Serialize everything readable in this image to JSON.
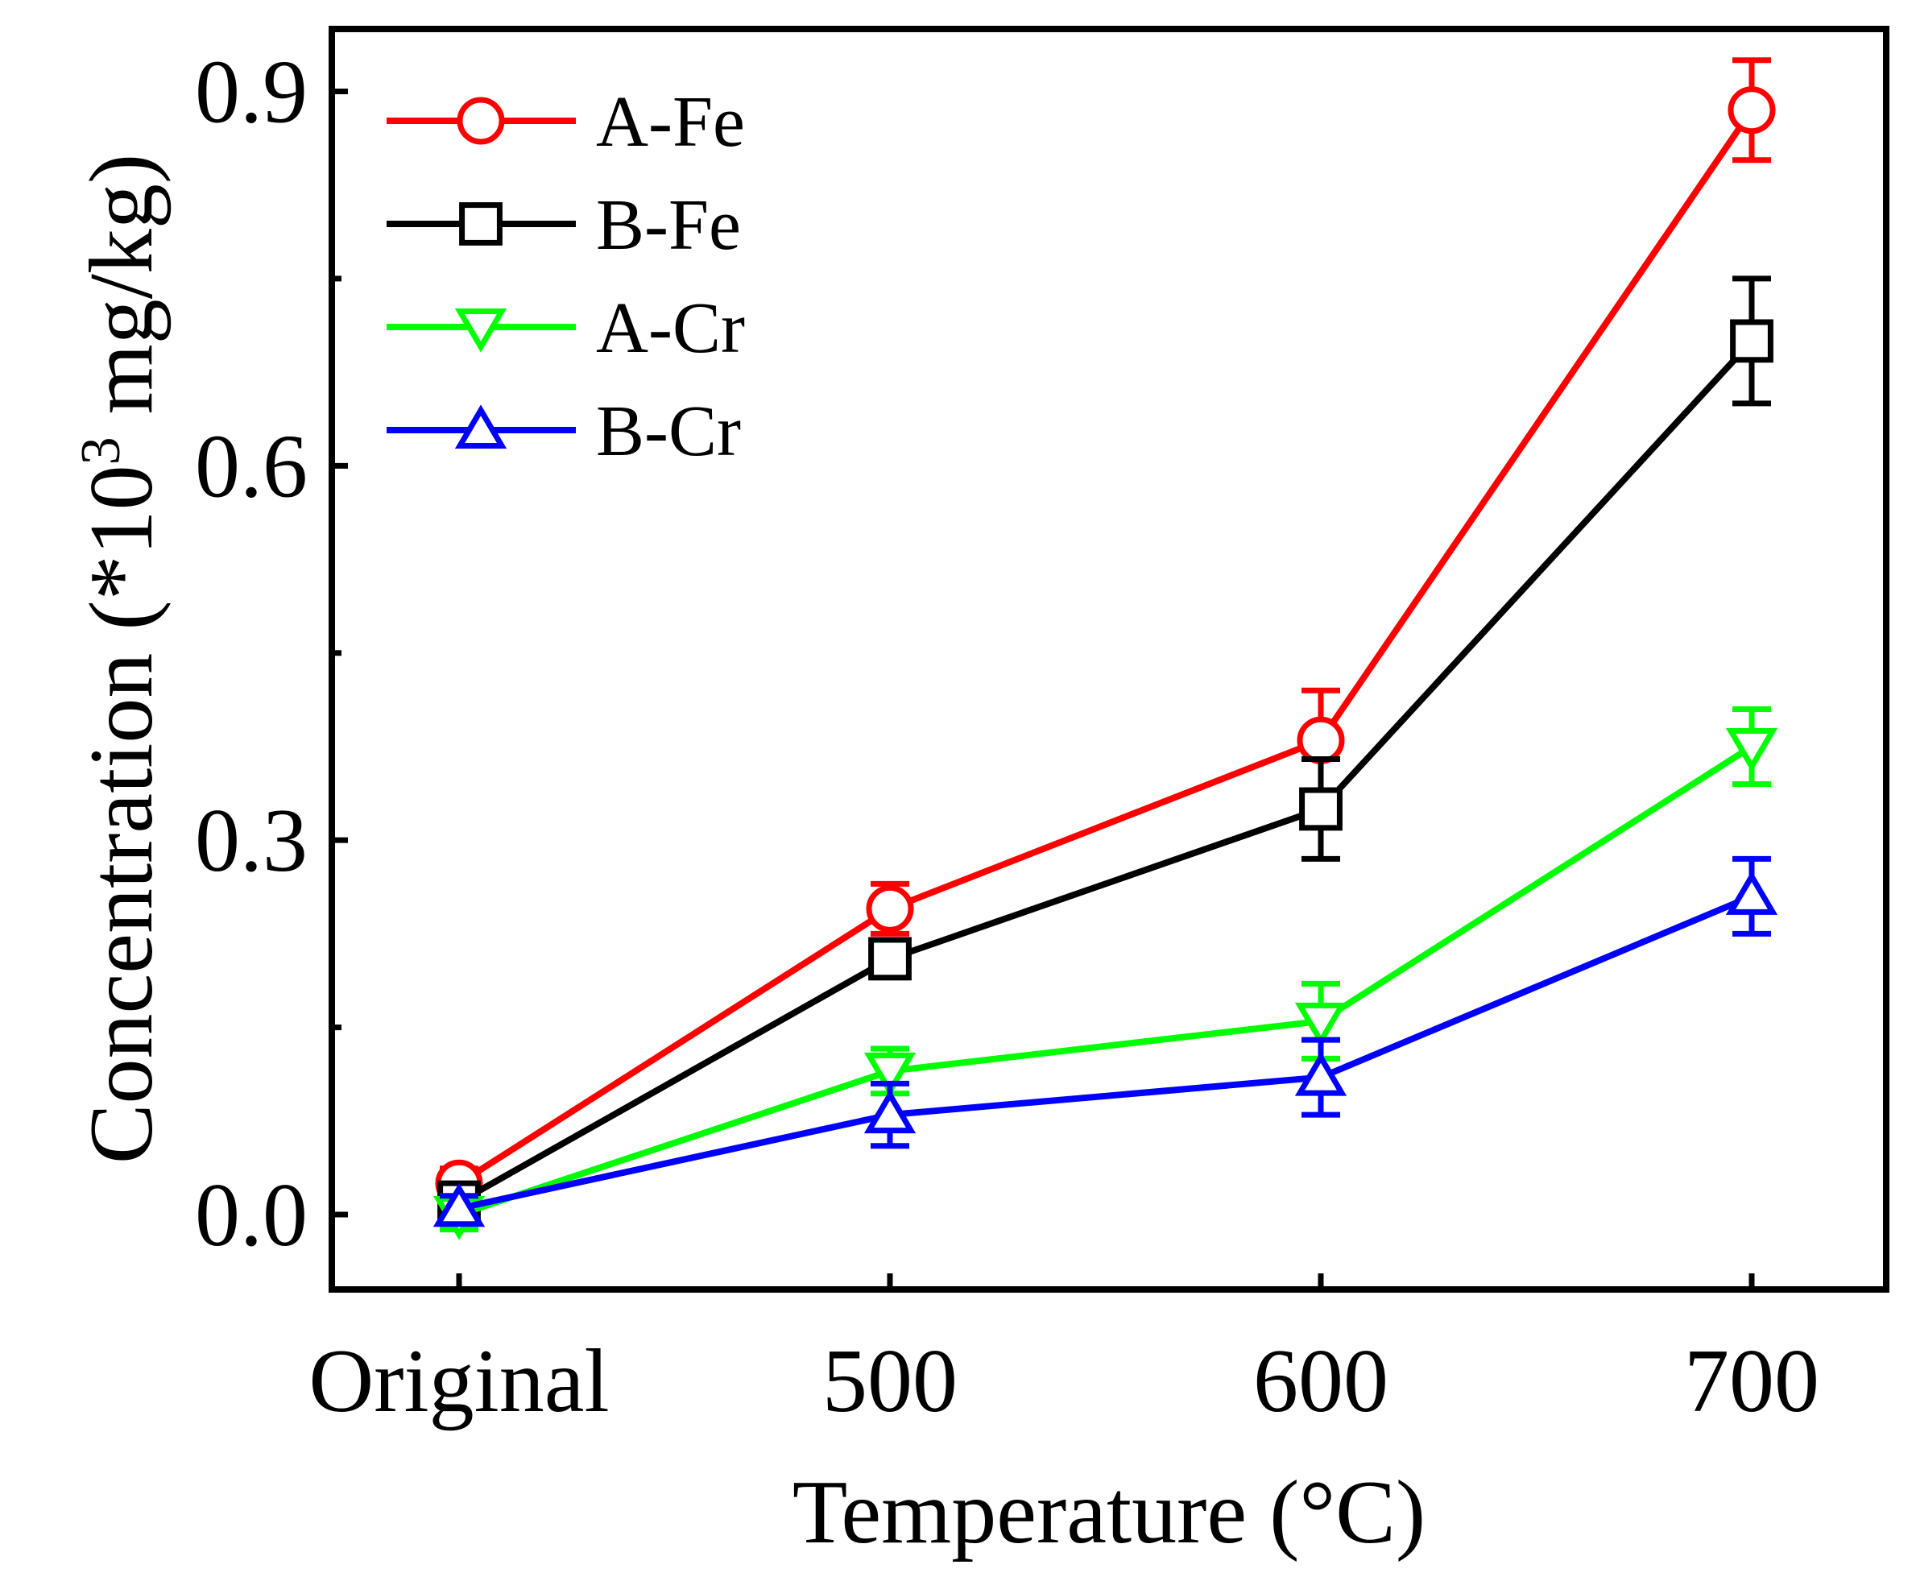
{
  "chart_data": {
    "type": "line",
    "title": "",
    "xlabel": "Temperature (°C)",
    "ylabel_prefix": "Concentration (*10",
    "ylabel_sup": "3",
    "ylabel_suffix": " mg/kg)",
    "categories": [
      "Original",
      "500",
      "600",
      "700"
    ],
    "ylim": [
      -0.06,
      0.95
    ],
    "yticks": [
      0.0,
      0.3,
      0.6,
      0.9
    ],
    "ytick_labels": [
      "0.0",
      "0.3",
      "0.6",
      "0.9"
    ],
    "yminor_ticks": [
      0.15,
      0.45,
      0.75
    ],
    "legend_position": "top-left",
    "grid": false,
    "series": [
      {
        "name": "A-Fe",
        "color": "#ff0000",
        "marker": "circle",
        "values": [
          0.025,
          0.245,
          0.38,
          0.885
        ],
        "errors": [
          0.012,
          0.02,
          0.04,
          0.04
        ]
      },
      {
        "name": "B-Fe",
        "color": "#000000",
        "marker": "square",
        "values": [
          0.01,
          0.205,
          0.325,
          0.7
        ],
        "errors": [
          0.01,
          0.015,
          0.04,
          0.05
        ]
      },
      {
        "name": "A-Cr",
        "color": "#00ff00",
        "marker": "triangle-down",
        "values": [
          0.0,
          0.115,
          0.155,
          0.375
        ],
        "errors": [
          0.012,
          0.018,
          0.03,
          0.03
        ]
      },
      {
        "name": "B-Cr",
        "color": "#0000ff",
        "marker": "triangle-up",
        "values": [
          0.005,
          0.08,
          0.11,
          0.255
        ],
        "errors": [
          0.01,
          0.025,
          0.03,
          0.03
        ]
      }
    ]
  }
}
